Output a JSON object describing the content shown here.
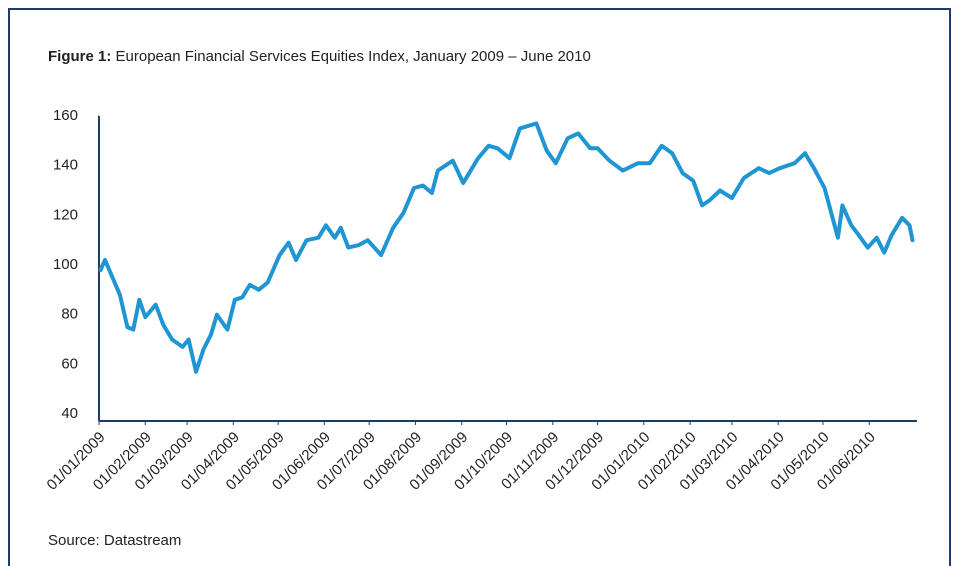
{
  "chart_data": {
    "type": "line",
    "title_label": "Figure 1:",
    "title": "European Financial Services Equities Index, January 2009 – June 2010",
    "source": "Source: Datastream",
    "x": [
      "2009-01-02",
      "2009-01-05",
      "2009-01-15",
      "2009-01-20",
      "2009-01-24",
      "2009-01-28",
      "2009-02-01",
      "2009-02-08",
      "2009-02-13",
      "2009-02-19",
      "2009-02-26",
      "2009-03-02",
      "2009-03-07",
      "2009-03-12",
      "2009-03-17",
      "2009-03-21",
      "2009-03-28",
      "2009-04-02",
      "2009-04-07",
      "2009-04-12",
      "2009-04-18",
      "2009-04-24",
      "2009-05-02",
      "2009-05-08",
      "2009-05-13",
      "2009-05-20",
      "2009-05-28",
      "2009-06-02",
      "2009-06-08",
      "2009-06-12",
      "2009-06-17",
      "2009-06-24",
      "2009-06-30",
      "2009-07-09",
      "2009-07-17",
      "2009-07-24",
      "2009-07-31",
      "2009-08-06",
      "2009-08-12",
      "2009-08-16",
      "2009-08-26",
      "2009-09-02",
      "2009-09-12",
      "2009-09-19",
      "2009-09-25",
      "2009-10-03",
      "2009-10-10",
      "2009-10-21",
      "2009-10-28",
      "2009-11-03",
      "2009-11-11",
      "2009-11-18",
      "2009-11-26",
      "2009-12-01",
      "2009-12-09",
      "2009-12-18",
      "2009-12-28",
      "2010-01-05",
      "2010-01-13",
      "2010-01-20",
      "2010-01-27",
      "2010-02-03",
      "2010-02-09",
      "2010-02-14",
      "2010-02-21",
      "2010-03-01",
      "2010-03-09",
      "2010-03-19",
      "2010-03-26",
      "2010-04-02",
      "2010-04-12",
      "2010-04-19",
      "2010-04-25",
      "2010-05-02",
      "2010-05-07",
      "2010-05-11",
      "2010-05-14",
      "2010-05-20",
      "2010-05-25",
      "2010-05-31",
      "2010-06-06",
      "2010-06-11",
      "2010-06-16",
      "2010-06-23",
      "2010-06-28",
      "2010-06-30"
    ],
    "series": [
      {
        "name": "European Financial Services Equities Index",
        "color": "#1f96d3",
        "values": [
          98,
          102,
          88,
          75,
          74,
          86,
          79,
          84,
          76,
          70,
          67,
          70,
          57,
          66,
          72,
          80,
          74,
          86,
          87,
          92,
          90,
          93,
          104,
          109,
          102,
          110,
          111,
          116,
          111,
          115,
          107,
          108,
          110,
          104,
          115,
          121,
          131,
          132,
          129,
          138,
          142,
          133,
          143,
          148,
          147,
          143,
          155,
          157,
          146,
          141,
          151,
          153,
          147,
          147,
          142,
          138,
          141,
          141,
          148,
          145,
          137,
          134,
          124,
          126,
          130,
          127,
          135,
          139,
          137,
          139,
          141,
          145,
          139,
          131,
          120,
          111,
          124,
          116,
          112,
          107,
          111,
          105,
          112,
          119,
          116,
          110
        ]
      }
    ],
    "xlim": [
      "2009-01-01",
      "2010-07-03"
    ],
    "xticks": [
      {
        "value": "2009-01-01",
        "label": "01/01/2009"
      },
      {
        "value": "2009-02-01",
        "label": "01/02/2009"
      },
      {
        "value": "2009-03-01",
        "label": "01/03/2009"
      },
      {
        "value": "2009-04-01",
        "label": "01/04/2009"
      },
      {
        "value": "2009-05-01",
        "label": "01/05/2009"
      },
      {
        "value": "2009-06-01",
        "label": "01/06/2009"
      },
      {
        "value": "2009-07-01",
        "label": "01/07/2009"
      },
      {
        "value": "2009-08-01",
        "label": "01/08/2009"
      },
      {
        "value": "2009-09-01",
        "label": "01/09/2009"
      },
      {
        "value": "2009-10-01",
        "label": "01/10/2009"
      },
      {
        "value": "2009-11-01",
        "label": "01/11/2009"
      },
      {
        "value": "2009-12-01",
        "label": "01/12/2009"
      },
      {
        "value": "2010-01-01",
        "label": "01/01/2010"
      },
      {
        "value": "2010-02-01",
        "label": "01/02/2010"
      },
      {
        "value": "2010-03-01",
        "label": "01/03/2010"
      },
      {
        "value": "2010-04-01",
        "label": "01/04/2010"
      },
      {
        "value": "2010-05-01",
        "label": "01/05/2010"
      },
      {
        "value": "2010-06-01",
        "label": "01/06/2010"
      }
    ],
    "ylim": [
      40,
      160
    ],
    "yticks": [
      40,
      60,
      80,
      100,
      120,
      140,
      160
    ],
    "grid": false
  }
}
